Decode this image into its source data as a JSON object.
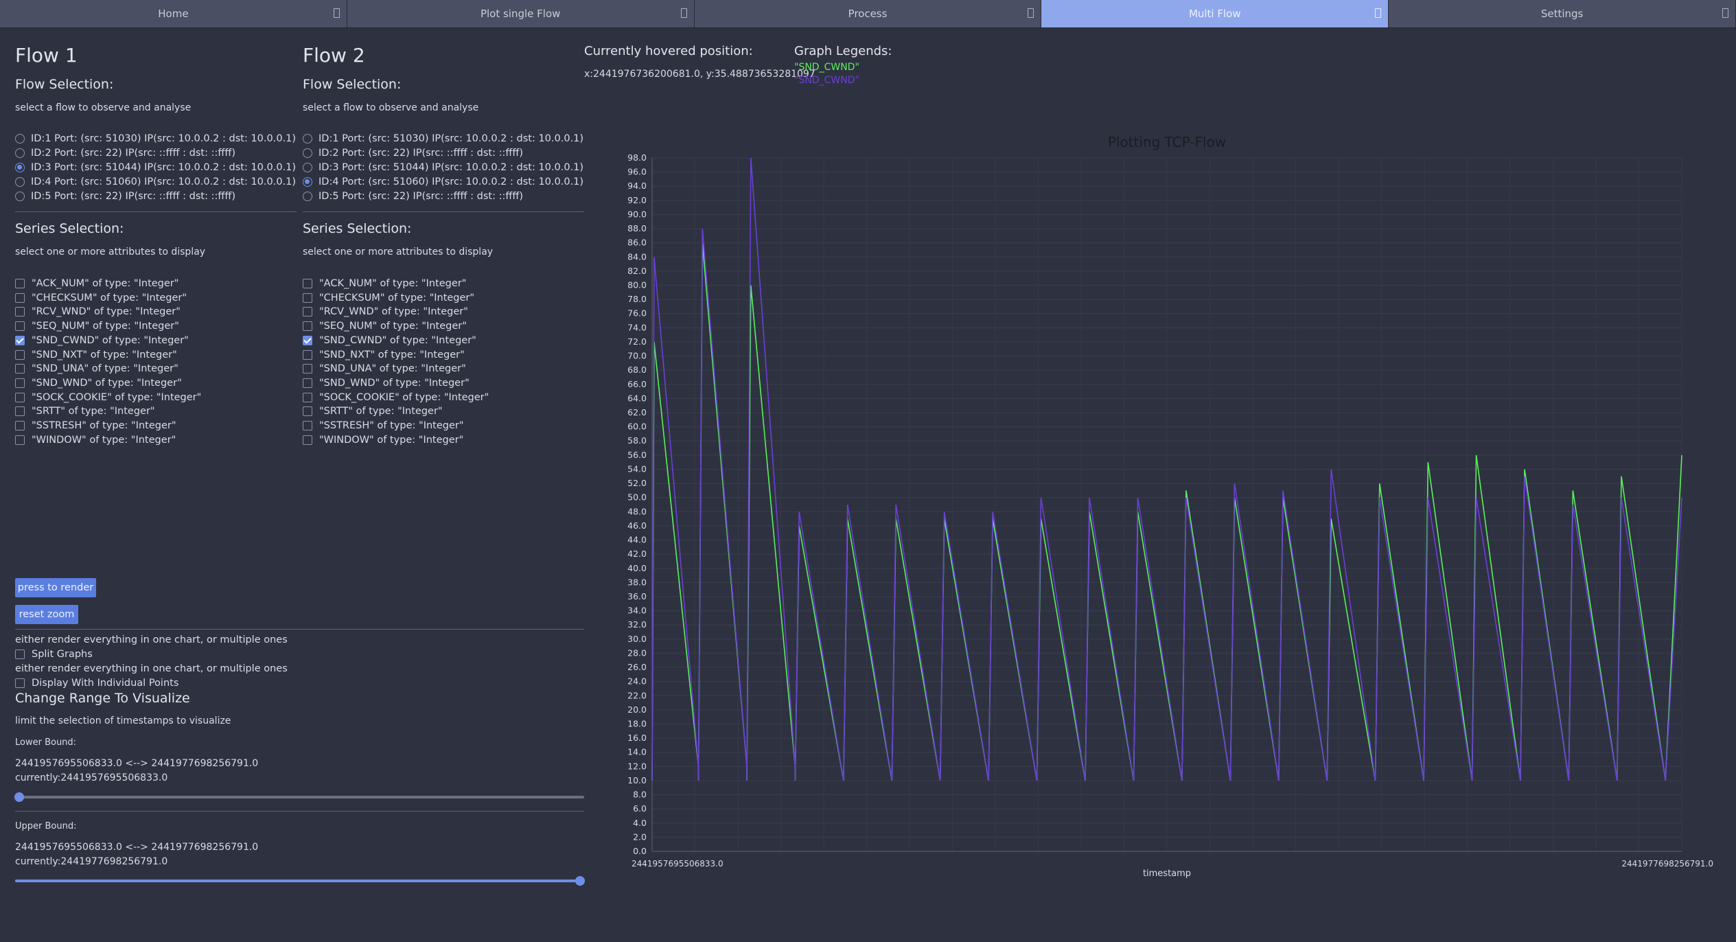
{
  "tabs": [
    {
      "label": "Home",
      "active": false
    },
    {
      "label": "Plot single Flow",
      "active": false
    },
    {
      "label": "Process",
      "active": false
    },
    {
      "label": "Multi Flow",
      "active": true
    },
    {
      "label": "Settings",
      "active": false
    }
  ],
  "flow1": {
    "title": "Flow 1",
    "flow_selection_heading": "Flow Selection:",
    "flow_selection_hint": "select a flow to observe and analyse",
    "flows": [
      {
        "label": "ID:1 Port: (src: 51030) IP(src: 10.0.0.2 : dst: 10.0.0.1)",
        "selected": false
      },
      {
        "label": "ID:2 Port: (src: 22) IP(src: ::ffff : dst: ::ffff)",
        "selected": false
      },
      {
        "label": "ID:3 Port: (src: 51044) IP(src: 10.0.0.2 : dst: 10.0.0.1)",
        "selected": true
      },
      {
        "label": "ID:4 Port: (src: 51060) IP(src: 10.0.0.2 : dst: 10.0.0.1)",
        "selected": false
      },
      {
        "label": "ID:5 Port: (src: 22) IP(src: ::ffff : dst: ::ffff)",
        "selected": false
      }
    ],
    "series_heading": "Series Selection:",
    "series_hint": "select one or more attributes to display",
    "series": [
      {
        "label": "\"ACK_NUM\" of type: \"Integer\"",
        "checked": false
      },
      {
        "label": "\"CHECKSUM\" of type: \"Integer\"",
        "checked": false
      },
      {
        "label": "\"RCV_WND\" of type: \"Integer\"",
        "checked": false
      },
      {
        "label": "\"SEQ_NUM\" of type: \"Integer\"",
        "checked": false
      },
      {
        "label": "\"SND_CWND\" of type: \"Integer\"",
        "checked": true
      },
      {
        "label": "\"SND_NXT\" of type: \"Integer\"",
        "checked": false
      },
      {
        "label": "\"SND_UNA\" of type: \"Integer\"",
        "checked": false
      },
      {
        "label": "\"SND_WND\" of type: \"Integer\"",
        "checked": false
      },
      {
        "label": "\"SOCK_COOKIE\" of type: \"Integer\"",
        "checked": false
      },
      {
        "label": "\"SRTT\" of type: \"Integer\"",
        "checked": false
      },
      {
        "label": "\"SSTRESH\" of type: \"Integer\"",
        "checked": false
      },
      {
        "label": "\"WINDOW\" of type: \"Integer\"",
        "checked": false
      }
    ]
  },
  "flow2": {
    "title": "Flow 2",
    "flow_selection_heading": "Flow Selection:",
    "flow_selection_hint": "select a flow to observe and analyse",
    "flows": [
      {
        "label": "ID:1 Port: (src: 51030) IP(src: 10.0.0.2 : dst: 10.0.0.1)",
        "selected": false
      },
      {
        "label": "ID:2 Port: (src: 22) IP(src: ::ffff : dst: ::ffff)",
        "selected": false
      },
      {
        "label": "ID:3 Port: (src: 51044) IP(src: 10.0.0.2 : dst: 10.0.0.1)",
        "selected": false
      },
      {
        "label": "ID:4 Port: (src: 51060) IP(src: 10.0.0.2 : dst: 10.0.0.1)",
        "selected": true
      },
      {
        "label": "ID:5 Port: (src: 22) IP(src: ::ffff : dst: ::ffff)",
        "selected": false
      }
    ],
    "series_heading": "Series Selection:",
    "series_hint": "select one or more attributes to display",
    "series": [
      {
        "label": "\"ACK_NUM\" of type: \"Integer\"",
        "checked": false
      },
      {
        "label": "\"CHECKSUM\" of type: \"Integer\"",
        "checked": false
      },
      {
        "label": "\"RCV_WND\" of type: \"Integer\"",
        "checked": false
      },
      {
        "label": "\"SEQ_NUM\" of type: \"Integer\"",
        "checked": false
      },
      {
        "label": "\"SND_CWND\" of type: \"Integer\"",
        "checked": true
      },
      {
        "label": "\"SND_NXT\" of type: \"Integer\"",
        "checked": false
      },
      {
        "label": "\"SND_UNA\" of type: \"Integer\"",
        "checked": false
      },
      {
        "label": "\"SND_WND\" of type: \"Integer\"",
        "checked": false
      },
      {
        "label": "\"SOCK_COOKIE\" of type: \"Integer\"",
        "checked": false
      },
      {
        "label": "\"SRTT\" of type: \"Integer\"",
        "checked": false
      },
      {
        "label": "\"SSTRESH\" of type: \"Integer\"",
        "checked": false
      },
      {
        "label": "\"WINDOW\" of type: \"Integer\"",
        "checked": false
      }
    ]
  },
  "controls": {
    "render_button": "press to render",
    "reset_zoom_button": "reset zoom",
    "split_hint": "either render everything in one chart, or multiple ones",
    "split_label": "Split Graphs",
    "split_checked": false,
    "points_hint": "either render everything in one chart, or multiple ones",
    "points_label": "Display With Individual Points",
    "points_checked": false,
    "range_heading": "Change Range To Visualize",
    "range_hint": "limit the selection of timestamps to visualize",
    "lower_label": "Lower Bound:",
    "lower_range": "2441957695506833.0 <--> 2441977698256791.0",
    "lower_current": "currently:2441957695506833.0",
    "lower_fraction": 0.0,
    "upper_label": "Upper Bound:",
    "upper_range": "2441957695506833.0 <--> 2441977698256791.0",
    "upper_current": "currently:2441977698256791.0",
    "upper_fraction": 1.0
  },
  "hover": {
    "heading": "Currently hovered position:",
    "value": "x:2441976736200681.0, y:35.48873653281097"
  },
  "legend": {
    "heading": "Graph Legends:",
    "entries": [
      {
        "label": "\"SND_CWND\"",
        "color": "#5cf05c"
      },
      {
        "label": "\"SND_CWND\"",
        "color": "#6a3fd8"
      }
    ]
  },
  "chart_data": {
    "type": "line",
    "title": "Plotting TCP-Flow",
    "xlabel": "timestamp",
    "ylabel": "",
    "ylim": [
      0,
      98
    ],
    "ytick_step": 2,
    "x_first_label": "2441957695506833.0",
    "x_last_label": "2441977698256791.0",
    "xlim": [
      2441957695506833.0,
      2441977698256791.0
    ],
    "grid": true,
    "series": [
      {
        "color": "#5cf05c",
        "x": [
          2441957695506833,
          2441957734506833,
          2441958595506833,
          2441958595506833,
          2441958672506833,
          2441959535506833,
          2441959535506833,
          2441959613506833,
          2441960474506833,
          2441960474506833,
          2441960551506833,
          2441961414506833,
          2441961414506833,
          2441961491506833,
          2441962353506833,
          2441962353506833,
          2441962431506833,
          2441963292506833,
          2441963292506833,
          2441963371506833,
          2441964231506833,
          2441964231506833,
          2441964311506833,
          2441965170506833,
          2441965170506833,
          2441965250506833,
          2441966110506833,
          2441966110506833,
          2441966190506833,
          2441967049506833,
          2441967049506833,
          2441967130506833,
          2441967988506833,
          2441967988506833,
          2441968069506833,
          2441968929506833,
          2441968929506833,
          2441969008506833,
          2441969867506833,
          2441969867506833,
          2441969950506833,
          2441970807506833,
          2441970807506833,
          2441970886506833,
          2441971745506833,
          2441971745506833,
          2441971827506833,
          2441972685506833,
          2441972685506833,
          2441972768506833,
          2441973624506833,
          2441973624506833,
          2441973705506833,
          2441974563506833,
          2441974563506833,
          2441974644506833,
          2441975502506833,
          2441975502506833,
          2441975583506833,
          2441976441506833,
          2441976441506833,
          2441976524506833,
          2441977380506833,
          2441977380506833,
          2441977698256791
        ],
        "y": [
          10,
          72,
          12,
          10,
          86,
          12,
          10,
          80,
          12,
          10,
          46,
          10,
          10,
          47,
          10,
          10,
          47,
          10,
          10,
          47,
          10,
          10,
          47,
          10,
          10,
          47,
          10,
          10,
          48,
          10,
          10,
          48,
          10,
          10,
          51,
          10,
          10,
          50,
          10,
          10,
          50,
          10,
          10,
          47,
          10,
          10,
          52,
          10,
          10,
          55,
          10,
          10,
          56,
          10,
          10,
          54,
          10,
          10,
          51,
          10,
          10,
          53,
          10,
          10,
          56
        ]
      },
      {
        "color": "#6a3fd8",
        "x": [
          2441957695506833,
          2441957734506833,
          2441958595506833,
          2441958595506833,
          2441958672506833,
          2441959535506833,
          2441959535506833,
          2441959613506833,
          2441960474506833,
          2441960474506833,
          2441960551506833,
          2441961414506833,
          2441961414506833,
          2441961491506833,
          2441962353506833,
          2441962353506833,
          2441962431506833,
          2441963292506833,
          2441963292506833,
          2441963371506833,
          2441964231506833,
          2441964231506833,
          2441964311506833,
          2441965170506833,
          2441965170506833,
          2441965250506833,
          2441966110506833,
          2441966110506833,
          2441966190506833,
          2441967049506833,
          2441967049506833,
          2441967130506833,
          2441967988506833,
          2441967988506833,
          2441968069506833,
          2441968929506833,
          2441968929506833,
          2441969008506833,
          2441969867506833,
          2441969867506833,
          2441969950506833,
          2441970807506833,
          2441970807506833,
          2441970886506833,
          2441971745506833,
          2441971745506833,
          2441971827506833,
          2441972685506833,
          2441972685506833,
          2441972768506833,
          2441973624506833,
          2441973624506833,
          2441973705506833,
          2441974563506833,
          2441974563506833,
          2441974644506833,
          2441975502506833,
          2441975502506833,
          2441975583506833,
          2441976441506833,
          2441976441506833,
          2441976524506833,
          2441977380506833,
          2441977380506833,
          2441977698256791
        ],
        "y": [
          10,
          84,
          12,
          10,
          88,
          12,
          10,
          98,
          12,
          10,
          48,
          10,
          10,
          49,
          10,
          10,
          49,
          10,
          10,
          48,
          10,
          10,
          48,
          10,
          10,
          50,
          10,
          10,
          50,
          10,
          10,
          50,
          10,
          10,
          50,
          10,
          10,
          52,
          10,
          10,
          51,
          10,
          10,
          54,
          10,
          10,
          50,
          10,
          10,
          50,
          10,
          10,
          50,
          10,
          10,
          53,
          10,
          10,
          49,
          10,
          10,
          50,
          10,
          10,
          50
        ]
      }
    ]
  }
}
